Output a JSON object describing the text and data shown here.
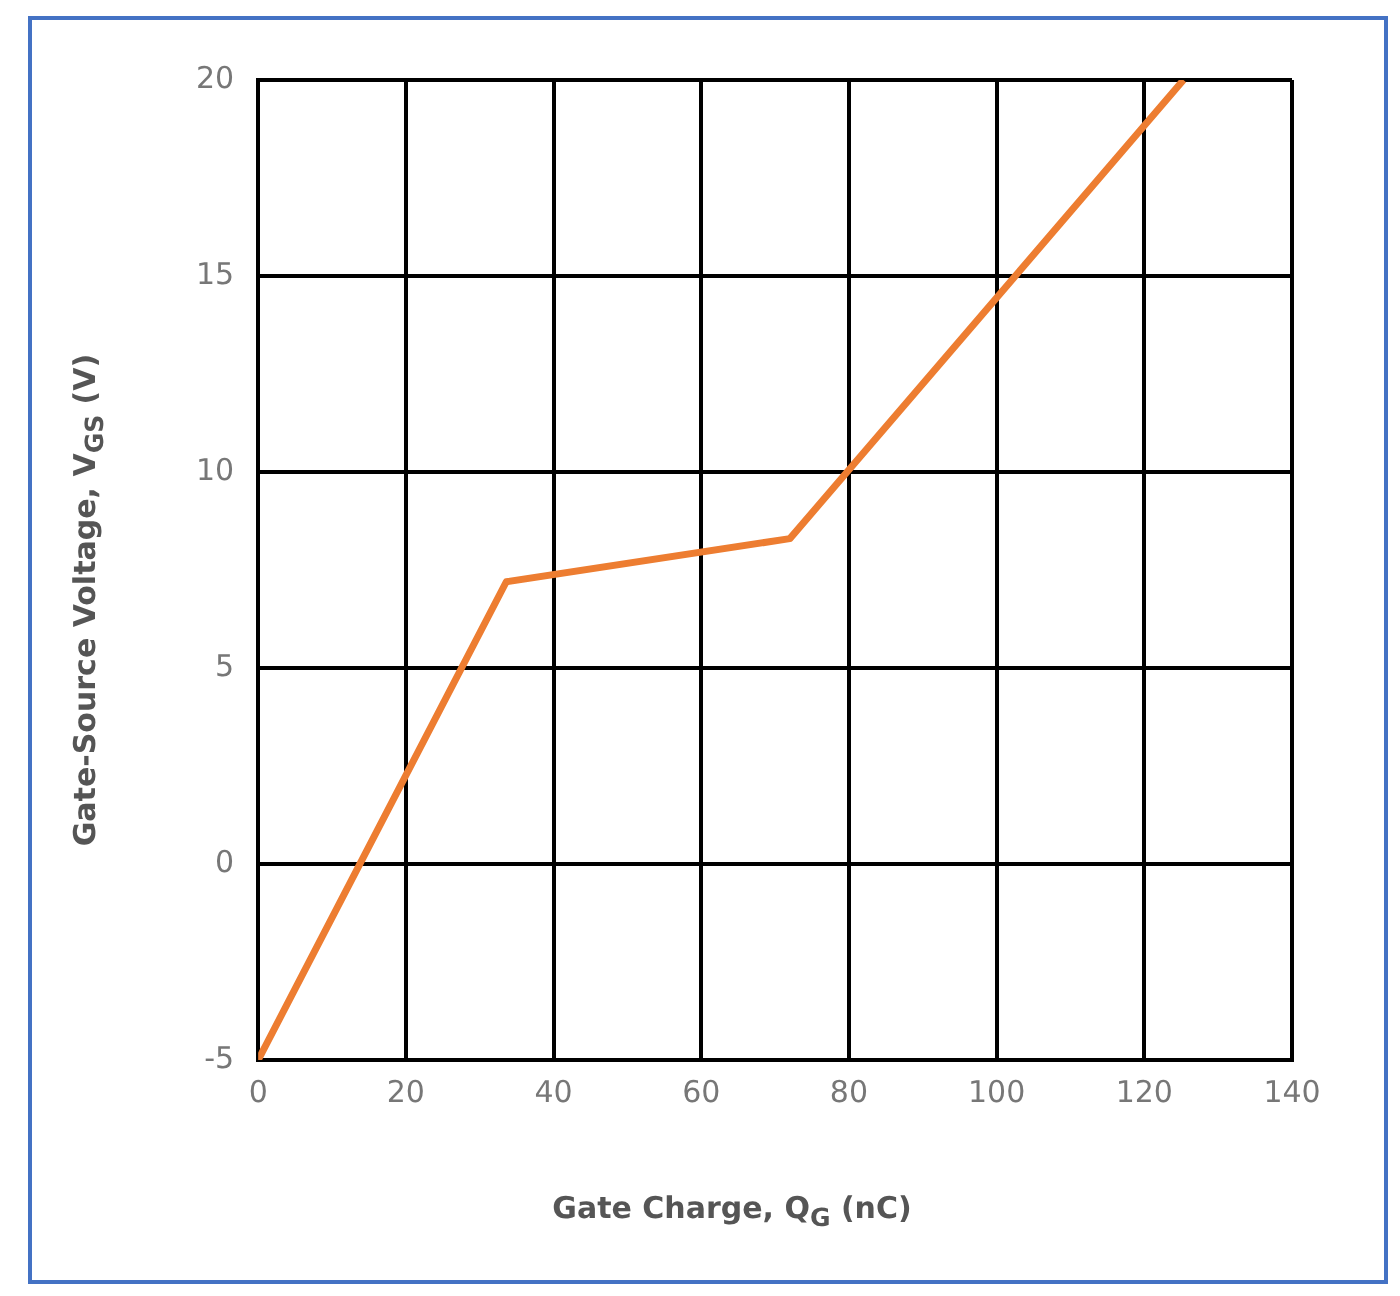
{
  "chart_data": {
    "type": "line",
    "xlabel": "Gate Charge, Q$_{G}$ (nC)",
    "ylabel": "Gate-Source Voltage, V$_{GS}$ (V)",
    "x": [
      0,
      33.6,
      72,
      125.3
    ],
    "series": [
      {
        "color": "#ed7d31",
        "values": [
          -5,
          7.2,
          8.3,
          20
        ]
      }
    ],
    "xlim": [
      0,
      140
    ],
    "xticks": [
      0,
      20,
      40,
      60,
      80,
      100,
      120,
      140
    ],
    "ylim": [
      -5,
      20
    ],
    "yticks": [
      -5,
      0,
      5,
      10,
      15,
      20
    ],
    "grid": true,
    "legend": false,
    "marker": "none",
    "line_style": "solid"
  }
}
